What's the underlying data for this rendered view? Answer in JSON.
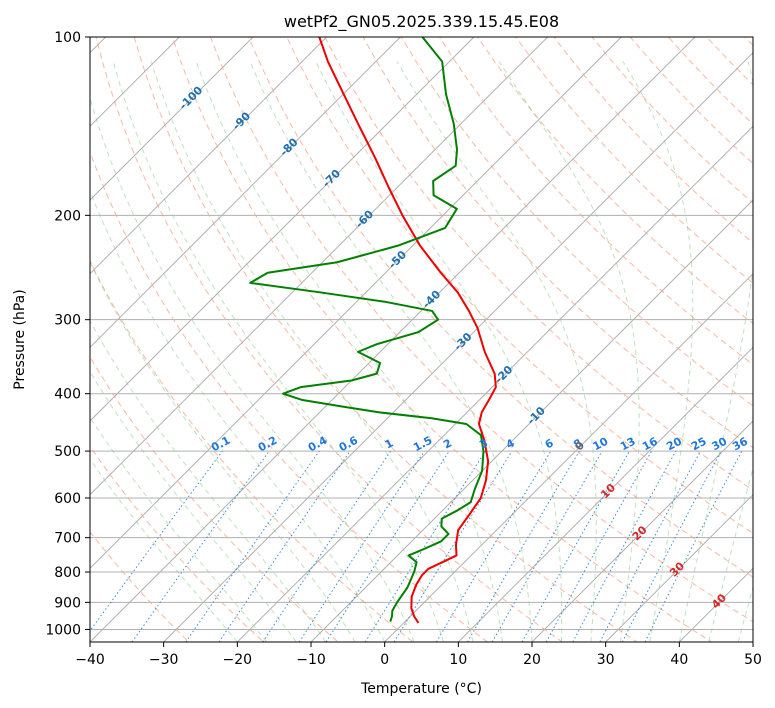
{
  "chart_data": {
    "type": "skew-t",
    "title": "wetPf2_GN05.2025.339.15.45.E08",
    "xlabel": "Temperature (°C)",
    "ylabel": "Pressure (hPa)",
    "xlim": [
      -40,
      50
    ],
    "ylim": [
      1050,
      100
    ],
    "x_ticks": [
      -40,
      -30,
      -20,
      -10,
      0,
      10,
      20,
      30,
      40,
      50
    ],
    "x_tick_labels": [
      "−40",
      "−30",
      "−20",
      "−10",
      "0",
      "10",
      "20",
      "30",
      "40",
      "50"
    ],
    "y_ticks": [
      1000,
      900,
      800,
      700,
      600,
      500,
      400,
      300,
      200,
      100
    ],
    "y_tick_labels": [
      "1000",
      "900",
      "800",
      "700",
      "600",
      "500",
      "400",
      "300",
      "200",
      "100"
    ],
    "skew_deg": 45,
    "dry_adiabats_c": [
      -100,
      -90,
      -80,
      -70,
      -60,
      -50,
      -40,
      -30,
      -20,
      -10,
      0,
      10,
      20,
      30,
      40
    ],
    "dry_adiabat_labels": [
      "-100",
      "-90",
      "-80",
      "-70",
      "-60",
      "-50",
      "-40",
      "-30",
      "-20",
      "-10",
      "0",
      "10",
      "20",
      "30",
      "40"
    ],
    "mixing_ratios_gkg": [
      0.1,
      0.2,
      0.4,
      0.6,
      1,
      1.5,
      2,
      3,
      4,
      6,
      8,
      10,
      13,
      16,
      20,
      25,
      30,
      36
    ],
    "mixing_ratio_labels": [
      "0.1",
      "0.2",
      "0.4",
      "0.6",
      "1",
      "1.5",
      "2",
      "3",
      "4",
      "6",
      "8",
      "10",
      "13",
      "16",
      "20",
      "25",
      "30",
      "36"
    ],
    "series": [
      {
        "name": "Temperature",
        "color": "#ee0000",
        "points": [
          [
            975,
            2.0
          ],
          [
            950,
            0.5
          ],
          [
            920,
            -1.0
          ],
          [
            880,
            -2.5
          ],
          [
            840,
            -3.5
          ],
          [
            810,
            -4.0
          ],
          [
            790,
            -4.0
          ],
          [
            770,
            -3.0
          ],
          [
            750,
            -2.0
          ],
          [
            720,
            -3.5
          ],
          [
            680,
            -5.2
          ],
          [
            640,
            -5.8
          ],
          [
            600,
            -6.5
          ],
          [
            560,
            -8.2
          ],
          [
            520,
            -10.5
          ],
          [
            480,
            -13.8
          ],
          [
            450,
            -16.8
          ],
          [
            430,
            -18.0
          ],
          [
            410,
            -18.7
          ],
          [
            390,
            -19.5
          ],
          [
            370,
            -21.5
          ],
          [
            340,
            -25.8
          ],
          [
            310,
            -30.0
          ],
          [
            290,
            -33.5
          ],
          [
            270,
            -37.5
          ],
          [
            250,
            -42.5
          ],
          [
            225,
            -49.0
          ],
          [
            200,
            -55.5
          ],
          [
            180,
            -61.0
          ],
          [
            160,
            -67.0
          ],
          [
            140,
            -74.0
          ],
          [
            120,
            -82.0
          ],
          [
            110,
            -86.5
          ],
          [
            100,
            -91.0
          ]
        ]
      },
      {
        "name": "Dewpoint",
        "color": "#008000",
        "points": [
          [
            970,
            -2.0
          ],
          [
            950,
            -2.5
          ],
          [
            930,
            -3.2
          ],
          [
            900,
            -3.7
          ],
          [
            850,
            -4.3
          ],
          [
            800,
            -5.5
          ],
          [
            770,
            -6.5
          ],
          [
            750,
            -8.5
          ],
          [
            735,
            -7.5
          ],
          [
            710,
            -6.0
          ],
          [
            690,
            -6.0
          ],
          [
            670,
            -8.0
          ],
          [
            650,
            -9.0
          ],
          [
            630,
            -8.0
          ],
          [
            610,
            -7.3
          ],
          [
            580,
            -8.5
          ],
          [
            540,
            -10.0
          ],
          [
            500,
            -12.5
          ],
          [
            470,
            -15.0
          ],
          [
            450,
            -18.5
          ],
          [
            440,
            -24.0
          ],
          [
            430,
            -32.0
          ],
          [
            420,
            -38.0
          ],
          [
            410,
            -44.0
          ],
          [
            400,
            -47.5
          ],
          [
            390,
            -46.0
          ],
          [
            380,
            -40.0
          ],
          [
            370,
            -37.5
          ],
          [
            355,
            -38.5
          ],
          [
            340,
            -43.0
          ],
          [
            330,
            -41.5
          ],
          [
            315,
            -37.5
          ],
          [
            300,
            -36.5
          ],
          [
            290,
            -38.5
          ],
          [
            280,
            -46.0
          ],
          [
            270,
            -56.0
          ],
          [
            260,
            -67.0
          ],
          [
            250,
            -66.0
          ],
          [
            240,
            -58.0
          ],
          [
            225,
            -52.0
          ],
          [
            210,
            -48.0
          ],
          [
            195,
            -49.0
          ],
          [
            185,
            -54.0
          ],
          [
            175,
            -56.0
          ],
          [
            165,
            -55.0
          ],
          [
            155,
            -57.0
          ],
          [
            140,
            -61.0
          ],
          [
            125,
            -66.0
          ],
          [
            110,
            -71.0
          ],
          [
            100,
            -77.0
          ]
        ]
      }
    ]
  }
}
